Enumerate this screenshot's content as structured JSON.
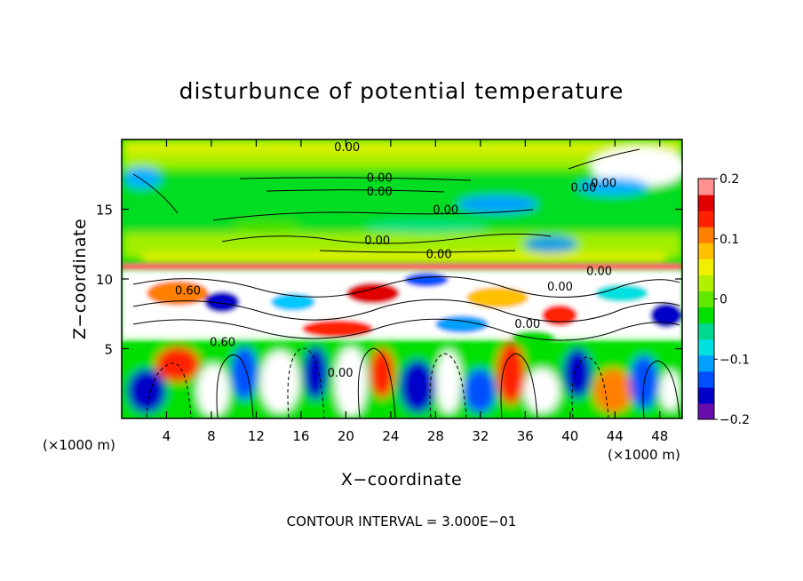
{
  "chart_data": {
    "type": "heatmap",
    "title": "disturbunce of potential temperature",
    "xlabel": "X−coordinate",
    "ylabel": "Z−coordinate",
    "x_unit": "(×1000 m)",
    "z_unit": "(×1000 m)",
    "xlim": [
      0,
      50
    ],
    "ylim": [
      0,
      20
    ],
    "x_ticks": [
      4,
      8,
      12,
      16,
      20,
      24,
      28,
      32,
      36,
      40,
      44,
      48
    ],
    "y_ticks": [
      5,
      10,
      15
    ],
    "colorbar": {
      "range": [
        -0.2,
        0.2
      ],
      "ticks": [
        -0.2,
        -0.1,
        0,
        0.1,
        0.2
      ],
      "tick_labels": [
        "−0.2",
        "−0.1",
        "0",
        "0.1",
        "0.2"
      ],
      "colors": [
        "#6a0dad",
        "#0000c8",
        "#0050ff",
        "#00a0ff",
        "#00e0e0",
        "#00d890",
        "#00e000",
        "#60e800",
        "#b0f000",
        "#f0f000",
        "#ffc000",
        "#ff8000",
        "#ff2000",
        "#e00000",
        "#ff9090"
      ]
    },
    "contour_labels": [
      {
        "text": "0.00",
        "x": 20.1,
        "y": 19.5
      },
      {
        "text": "0.00",
        "x": 43.0,
        "y": 16.9
      },
      {
        "text": "0.00",
        "x": 41.2,
        "y": 16.6
      },
      {
        "text": "0.00",
        "x": 23.0,
        "y": 17.3
      },
      {
        "text": "0.00",
        "x": 23.0,
        "y": 16.3
      },
      {
        "text": "0.00",
        "x": 28.9,
        "y": 15.0
      },
      {
        "text": "0.00",
        "x": 22.8,
        "y": 12.8
      },
      {
        "text": "0.00",
        "x": 28.3,
        "y": 11.8
      },
      {
        "text": "0.00",
        "x": 42.6,
        "y": 10.6
      },
      {
        "text": "0.00",
        "x": 39.1,
        "y": 9.5
      },
      {
        "text": "0.60",
        "x": 5.9,
        "y": 9.2
      },
      {
        "text": "0.60",
        "x": 9.0,
        "y": 5.5
      },
      {
        "text": "0.00",
        "x": 36.2,
        "y": 6.8
      },
      {
        "text": "0.00",
        "x": 19.5,
        "y": 3.3
      }
    ],
    "footer": "CONTOUR INTERVAL = 3.000E−01"
  }
}
